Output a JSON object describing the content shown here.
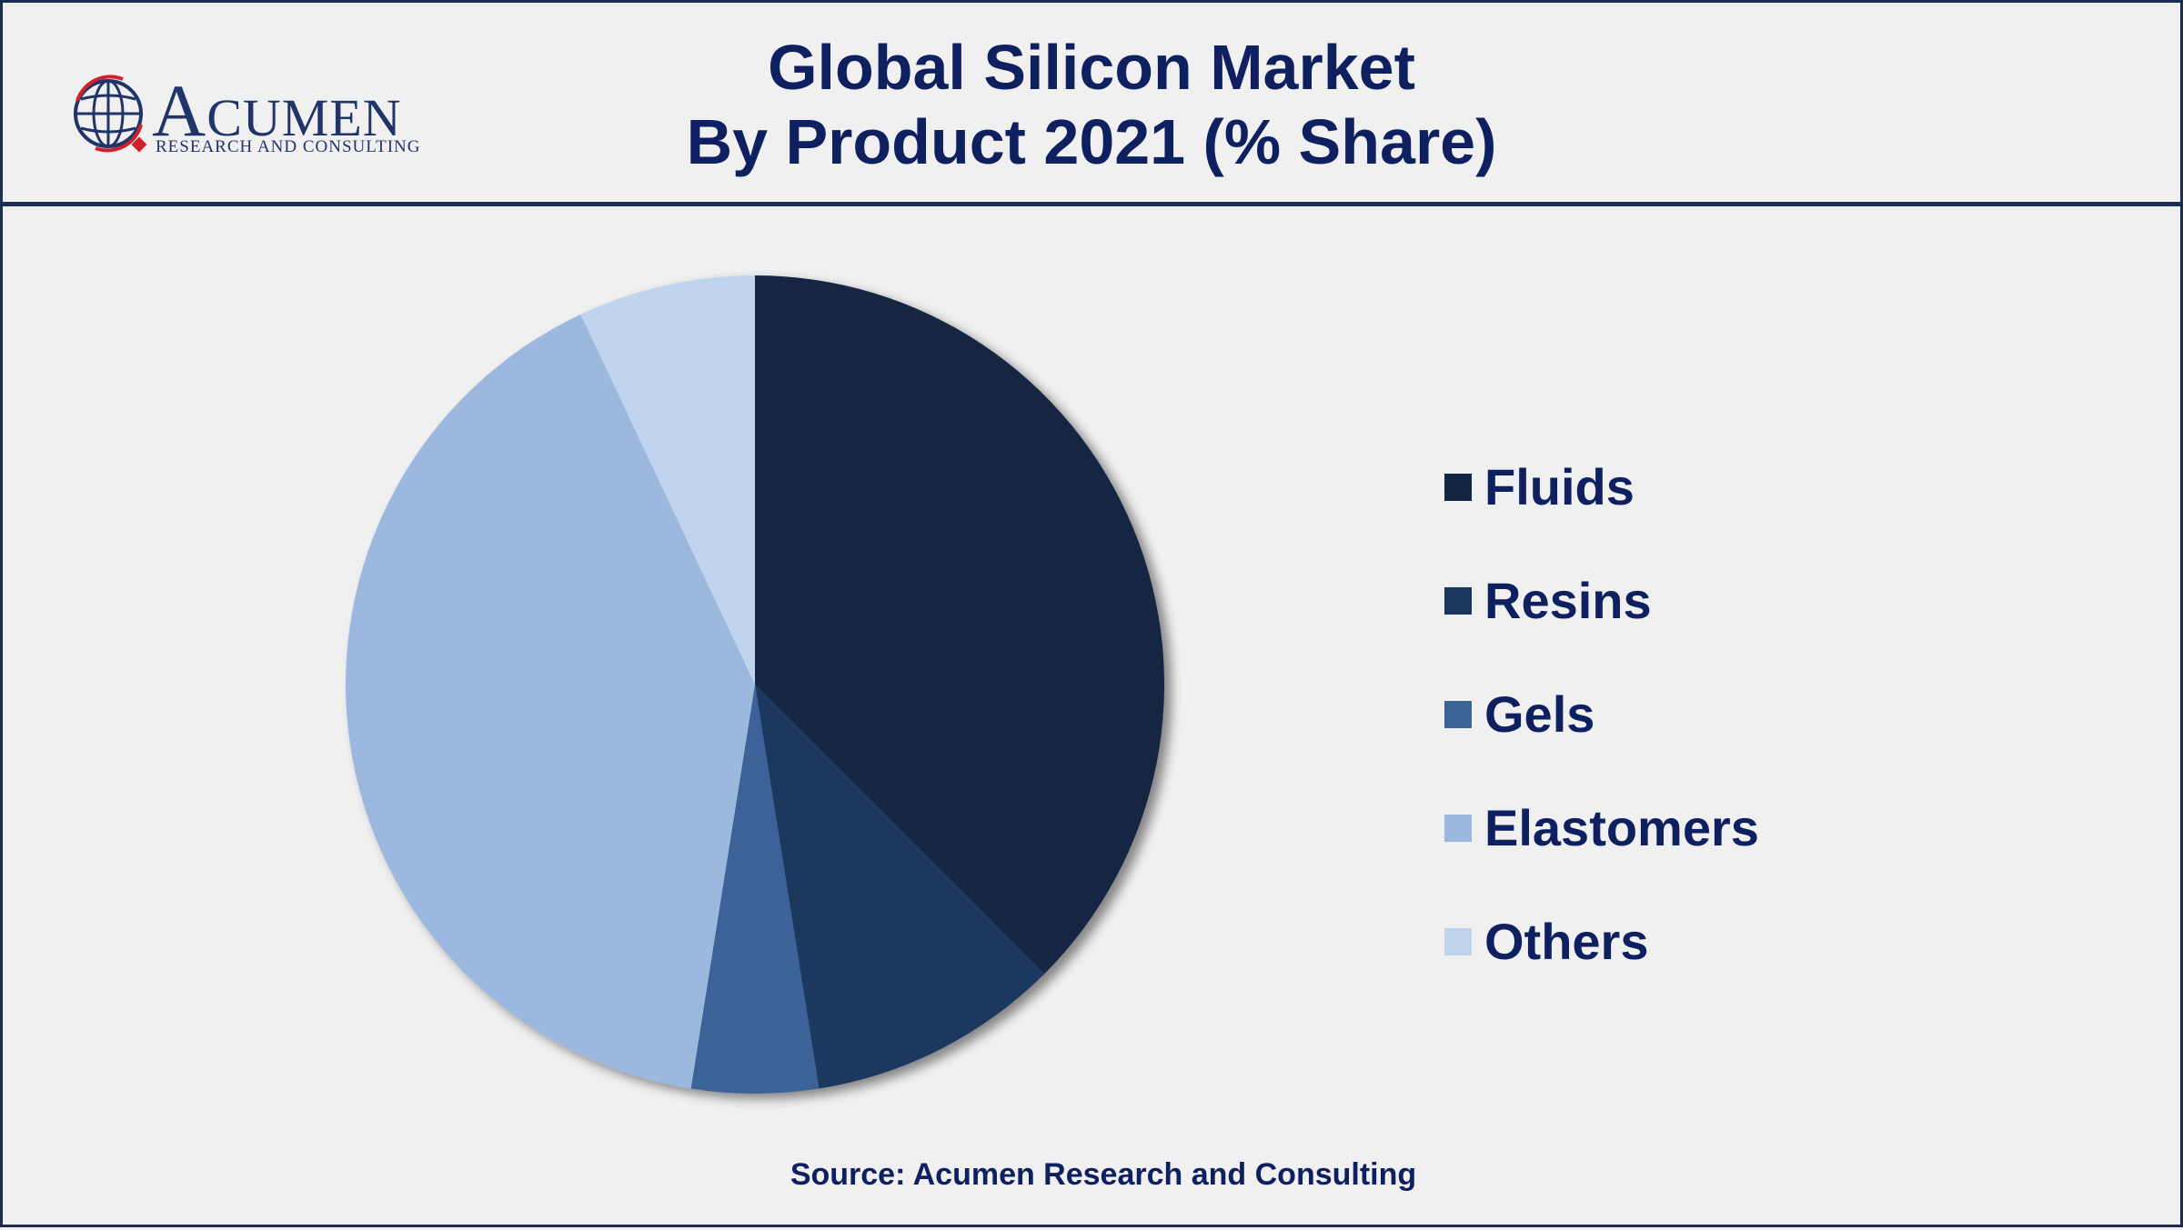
{
  "logo": {
    "name_initial": "A",
    "name_rest": "CUMEN",
    "subtitle": "RESEARCH AND CONSULTING"
  },
  "chart_data": {
    "type": "pie",
    "title_line1": "Global Silicon Market",
    "title_line2": "By Product 2021 (% Share)",
    "categories": [
      "Fluids",
      "Resins",
      "Gels",
      "Elastomers",
      "Others"
    ],
    "values": [
      37.5,
      10.0,
      5.0,
      40.5,
      7.0
    ],
    "colors": [
      "#132543",
      "#1b375f",
      "#3b6497",
      "#9db8de",
      "#c0d4ee"
    ],
    "legend_position": "right"
  },
  "source": "Source: Acumen Research and Consulting"
}
